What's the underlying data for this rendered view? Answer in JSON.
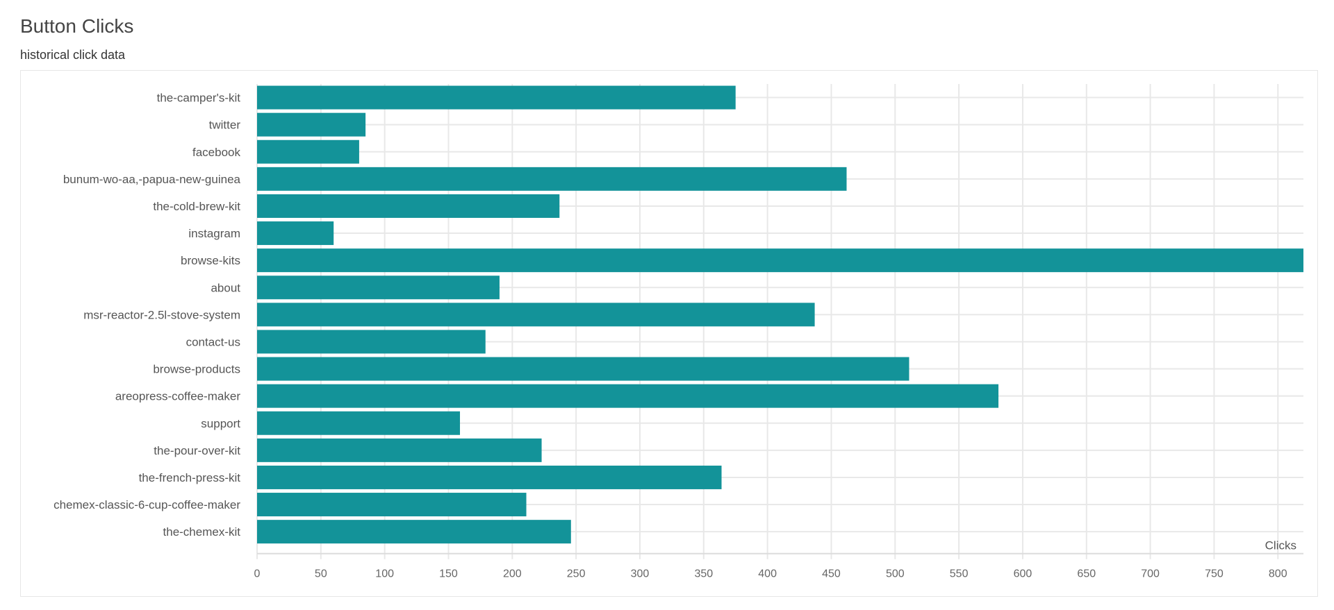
{
  "header": {
    "title": "Button Clicks",
    "subtitle": "historical click data"
  },
  "colors": {
    "bar": "#139399",
    "grid": "#e8e8e8",
    "text": "#555555"
  },
  "chart_data": {
    "type": "bar",
    "orientation": "horizontal",
    "title": "Button Clicks",
    "subtitle": "historical click data",
    "xlabel": "Clicks",
    "ylabel": "",
    "xlim": [
      0,
      820
    ],
    "xticks": [
      0,
      50,
      100,
      150,
      200,
      250,
      300,
      350,
      400,
      450,
      500,
      550,
      600,
      650,
      700,
      750,
      800
    ],
    "grid": true,
    "categories": [
      "the-camper's-kit",
      "twitter",
      "facebook",
      "bunum-wo-aa,-papua-new-guinea",
      "the-cold-brew-kit",
      "instagram",
      "browse-kits",
      "about",
      "msr-reactor-2.5l-stove-system",
      "contact-us",
      "browse-products",
      "areopress-coffee-maker",
      "support",
      "the-pour-over-kit",
      "the-french-press-kit",
      "chemex-classic-6-cup-coffee-maker",
      "the-chemex-kit"
    ],
    "values": [
      375,
      85,
      80,
      462,
      237,
      60,
      821,
      190,
      437,
      179,
      511,
      581,
      159,
      223,
      364,
      211,
      246
    ]
  }
}
